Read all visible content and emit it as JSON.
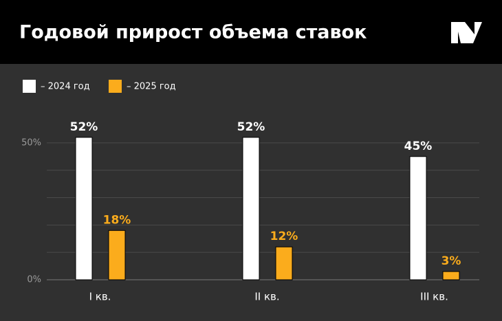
{
  "chart_data": {
    "type": "bar",
    "title": "Годовой прирост объема ставок",
    "categories": [
      "I кв.",
      "II кв.",
      "III кв."
    ],
    "series": [
      {
        "name": "– 2024 год",
        "color": "#ffffff",
        "values": [
          52,
          52,
          45
        ],
        "value_labels": [
          "52%",
          "52%",
          "45%"
        ],
        "label_color": "#ffffff"
      },
      {
        "name": "– 2025 год",
        "color": "#fbac1c",
        "values": [
          18,
          12,
          3
        ],
        "value_labels": [
          "18%",
          "12%",
          "3%"
        ],
        "label_color": "#fbac1c"
      }
    ],
    "ylim": [
      0,
      60
    ],
    "yticks": [
      {
        "value": 0,
        "label": "0%"
      },
      {
        "value": 50,
        "label": "50%"
      }
    ],
    "minor_yticks": [
      10,
      20,
      30,
      40
    ],
    "grid": true,
    "legend": "top-left"
  }
}
